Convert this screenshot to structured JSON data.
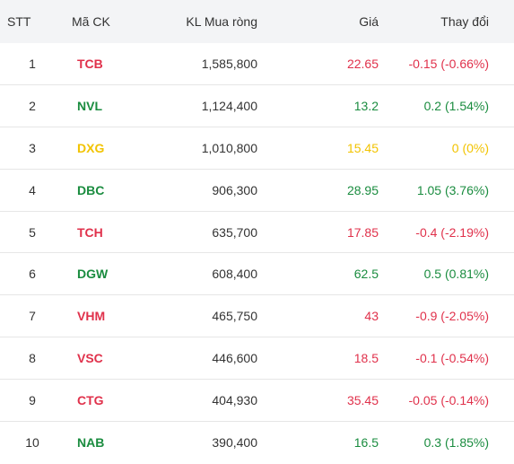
{
  "header": {
    "stt": "STT",
    "code": "Mã CK",
    "volume": "KL Mua ròng",
    "price": "Giá",
    "change": "Thay đổi"
  },
  "colors": {
    "up": "#1a8c3f",
    "down": "#e0314b",
    "ref": "#f2c300",
    "header_bg": "#f3f4f6"
  },
  "rows": [
    {
      "stt": "1",
      "code": "TCB",
      "volume": "1,585,800",
      "price": "22.65",
      "change": "-0.15 (-0.66%)",
      "trend": "down"
    },
    {
      "stt": "2",
      "code": "NVL",
      "volume": "1,124,400",
      "price": "13.2",
      "change": "0.2 (1.54%)",
      "trend": "up"
    },
    {
      "stt": "3",
      "code": "DXG",
      "volume": "1,010,800",
      "price": "15.45",
      "change": "0 (0%)",
      "trend": "ref"
    },
    {
      "stt": "4",
      "code": "DBC",
      "volume": "906,300",
      "price": "28.95",
      "change": "1.05 (3.76%)",
      "trend": "up"
    },
    {
      "stt": "5",
      "code": "TCH",
      "volume": "635,700",
      "price": "17.85",
      "change": "-0.4 (-2.19%)",
      "trend": "down"
    },
    {
      "stt": "6",
      "code": "DGW",
      "volume": "608,400",
      "price": "62.5",
      "change": "0.5 (0.81%)",
      "trend": "up"
    },
    {
      "stt": "7",
      "code": "VHM",
      "volume": "465,750",
      "price": "43",
      "change": "-0.9 (-2.05%)",
      "trend": "down"
    },
    {
      "stt": "8",
      "code": "VSC",
      "volume": "446,600",
      "price": "18.5",
      "change": "-0.1 (-0.54%)",
      "trend": "down"
    },
    {
      "stt": "9",
      "code": "CTG",
      "volume": "404,930",
      "price": "35.45",
      "change": "-0.05 (-0.14%)",
      "trend": "down"
    },
    {
      "stt": "10",
      "code": "NAB",
      "volume": "390,400",
      "price": "16.5",
      "change": "0.3 (1.85%)",
      "trend": "up"
    }
  ]
}
